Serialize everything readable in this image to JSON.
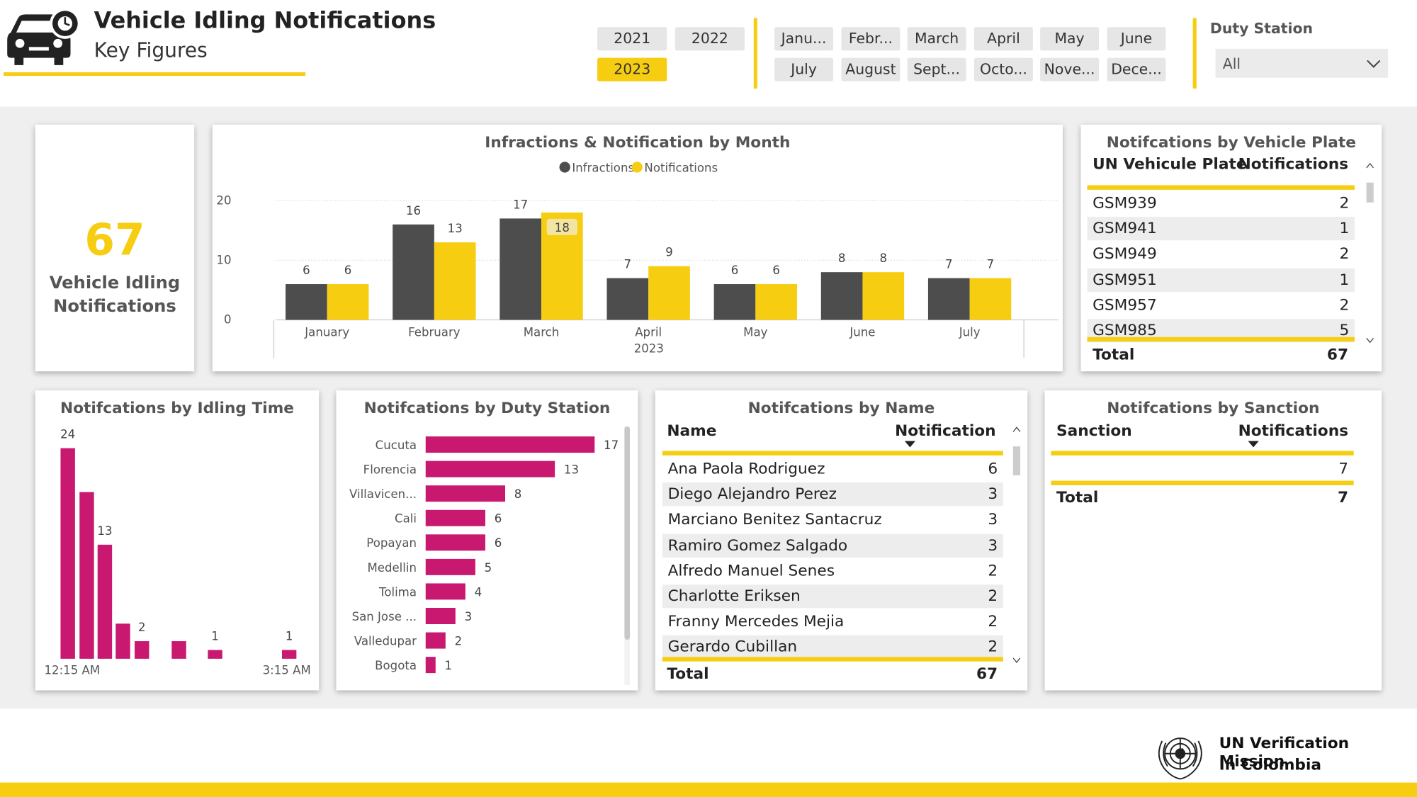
{
  "header": {
    "title": "Vehicle Idling Notifications",
    "subtitle": "Key Figures",
    "years": [
      {
        "label": "2021",
        "selected": false
      },
      {
        "label": "2022",
        "selected": false
      },
      {
        "label": "2023",
        "selected": true
      }
    ],
    "months": [
      "Janu...",
      "Febr...",
      "March",
      "April",
      "May",
      "June",
      "July",
      "August",
      "Sept...",
      "Octo...",
      "Nove...",
      "Dece..."
    ],
    "duty_station_label": "Duty Station",
    "duty_station_value": "All"
  },
  "kpi": {
    "value": "67",
    "label_line1": "Vehicle Idling",
    "label_line2": "Notifications"
  },
  "plates": {
    "title": "Notifcations by Vehicle Plate",
    "col1": "UN Vehicule Plate",
    "col2": "Notifications",
    "rows": [
      {
        "name": "GSM939",
        "value": "2"
      },
      {
        "name": "GSM941",
        "value": "1"
      },
      {
        "name": "GSM949",
        "value": "2"
      },
      {
        "name": "GSM951",
        "value": "1"
      },
      {
        "name": "GSM957",
        "value": "2"
      },
      {
        "name": "GSM985",
        "value": "5"
      }
    ],
    "total_label": "Total",
    "total_value": "67"
  },
  "names": {
    "title": "Notifcations by Name",
    "col1": "Name",
    "col2": "Notification",
    "rows": [
      {
        "name": "Ana Paola Rodriguez",
        "value": "6"
      },
      {
        "name": "Diego Alejandro Perez",
        "value": "3"
      },
      {
        "name": "Marciano Benitez Santacruz",
        "value": "3"
      },
      {
        "name": "Ramiro Gomez Salgado",
        "value": "3"
      },
      {
        "name": "Alfredo Manuel Senes",
        "value": "2"
      },
      {
        "name": "Charlotte Eriksen",
        "value": "2"
      },
      {
        "name": "Franny Mercedes Mejia",
        "value": "2"
      },
      {
        "name": "Gerardo Cubillan",
        "value": "2"
      }
    ],
    "total_label": "Total",
    "total_value": "67"
  },
  "sanction": {
    "title": "Notifcations by Sanction",
    "col1": "Sanction",
    "col2": "Notifications",
    "rows": [
      {
        "name": "",
        "value": "7"
      }
    ],
    "total_label": "Total",
    "total_value": "7"
  },
  "footer": {
    "org_line1": "UN Verification Mission",
    "org_line2": "In Colombia"
  },
  "colors": {
    "accent": "#f7cd11",
    "dark": "#4d4d4d",
    "magenta": "#c8186f"
  },
  "chart_data": [
    {
      "type": "bar",
      "title": "Infractions & Notification by Month",
      "categories": [
        "January",
        "February",
        "March",
        "April",
        "May",
        "June",
        "July"
      ],
      "xlabel": "2023",
      "ylabel": "",
      "yticks": [
        0,
        10,
        20
      ],
      "ylim": [
        0,
        20
      ],
      "legend": "top-center",
      "series": [
        {
          "name": "Infractions",
          "values": [
            6,
            16,
            17,
            7,
            6,
            8,
            7
          ]
        },
        {
          "name": "Notifications",
          "values": [
            6,
            13,
            18,
            9,
            6,
            8,
            7
          ]
        }
      ]
    },
    {
      "type": "bar",
      "title": "Notifcations by Idling Time",
      "x_start_label": "12:15 AM",
      "x_end_label": "3:15 AM",
      "values": [
        24,
        19,
        13,
        4,
        2,
        2,
        1,
        1
      ],
      "labels": [
        "24",
        "",
        "13",
        "",
        "2",
        "",
        "1",
        "1"
      ]
    },
    {
      "type": "bar",
      "orientation": "horizontal",
      "title": "Notifcations by Duty Station",
      "categories": [
        "Cucuta",
        "Florencia",
        "Villavicen...",
        "Cali",
        "Popayan",
        "Medellin",
        "Tolima",
        "San Jose ...",
        "Valledupar",
        "Bogota"
      ],
      "values": [
        17,
        13,
        8,
        6,
        6,
        5,
        4,
        3,
        2,
        1
      ]
    }
  ]
}
